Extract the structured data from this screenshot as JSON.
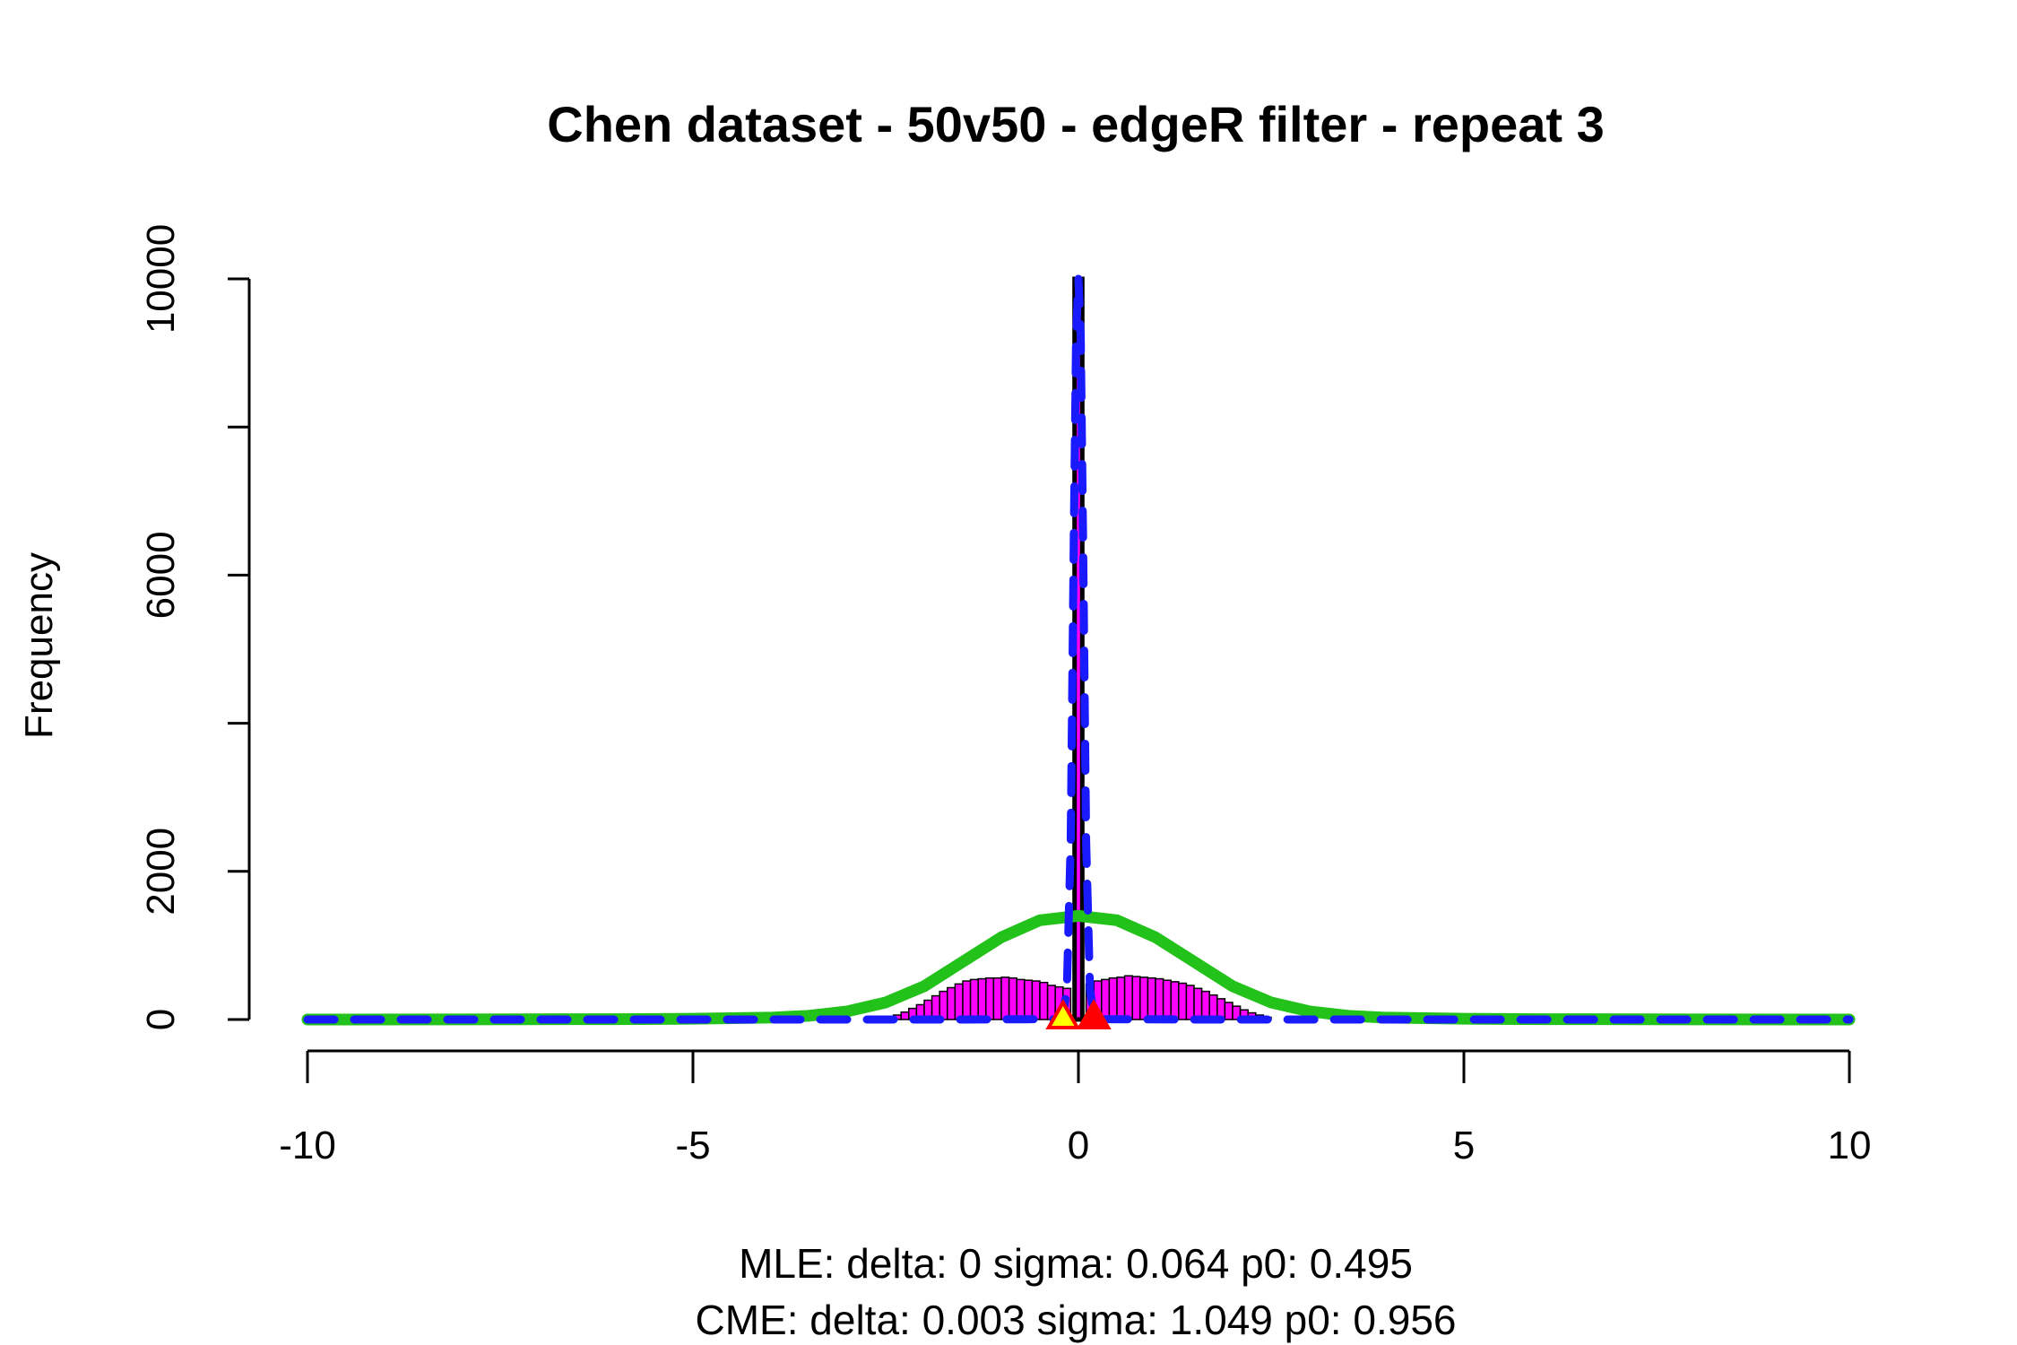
{
  "chart_data": {
    "type": "bar",
    "title": "Chen dataset - 50v50 - edgeR filter - repeat 3",
    "xlabel": "",
    "ylabel": "Frequency",
    "xlim": [
      -10,
      10
    ],
    "ylim": [
      0,
      10000
    ],
    "x_ticks": [
      -10,
      -5,
      0,
      5,
      10
    ],
    "y_ticks": [
      0,
      2000,
      6000,
      10000
    ],
    "y_minor_ticks": [
      4000,
      8000
    ],
    "subtitle_lines": [
      "MLE: delta: 0 sigma: 0.064 p0: 0.495",
      "CME: delta: 0.003 sigma: 1.049 p0: 0.956"
    ],
    "histogram": {
      "fill_color": "#ff00ff",
      "bin_width": 0.1,
      "bins_x_start": [
        -2.5,
        -2.4,
        -2.3,
        -2.2,
        -2.1,
        -2.0,
        -1.9,
        -1.8,
        -1.7,
        -1.6,
        -1.5,
        -1.4,
        -1.3,
        -1.2,
        -1.1,
        -1.0,
        -0.9,
        -0.8,
        -0.7,
        -0.6,
        -0.5,
        -0.4,
        -0.3,
        -0.2,
        -0.1,
        0.0,
        0.1,
        0.2,
        0.3,
        0.4,
        0.5,
        0.6,
        0.7,
        0.8,
        0.9,
        1.0,
        1.1,
        1.2,
        1.3,
        1.4,
        1.5,
        1.6,
        1.7,
        1.8,
        1.9,
        2.0,
        2.1,
        2.2,
        2.3,
        2.4
      ],
      "counts": [
        30,
        60,
        100,
        150,
        200,
        260,
        320,
        380,
        430,
        480,
        520,
        540,
        550,
        560,
        560,
        570,
        560,
        540,
        530,
        520,
        500,
        460,
        440,
        420,
        10000,
        10000,
        480,
        520,
        540,
        560,
        570,
        590,
        580,
        570,
        560,
        550,
        530,
        510,
        490,
        460,
        420,
        380,
        330,
        280,
        230,
        180,
        130,
        90,
        60,
        30
      ],
      "central_bar": {
        "x_start": -0.05,
        "x_end": 0.05,
        "count": 10000
      }
    },
    "series": [
      {
        "name": "",
        "color": "#22c21a",
        "style": "solid",
        "points": [
          [
            -10,
            0
          ],
          [
            -8,
            2
          ],
          [
            -6,
            5
          ],
          [
            -5,
            10
          ],
          [
            -4,
            25
          ],
          [
            -3.5,
            50
          ],
          [
            -3,
            110
          ],
          [
            -2.5,
            230
          ],
          [
            -2,
            450
          ],
          [
            -1.5,
            780
          ],
          [
            -1,
            1110
          ],
          [
            -0.5,
            1340
          ],
          [
            0,
            1400
          ],
          [
            0.5,
            1340
          ],
          [
            1,
            1110
          ],
          [
            1.5,
            780
          ],
          [
            2,
            450
          ],
          [
            2.5,
            230
          ],
          [
            3,
            110
          ],
          [
            3.5,
            50
          ],
          [
            4,
            25
          ],
          [
            5,
            10
          ],
          [
            6,
            5
          ],
          [
            8,
            2
          ],
          [
            10,
            0
          ]
        ]
      },
      {
        "name": "",
        "color": "#1a1aff",
        "style": "dashed",
        "points": [
          [
            -10,
            0
          ],
          [
            -1.5,
            0
          ],
          [
            -0.3,
            5
          ],
          [
            -0.2,
            60
          ],
          [
            -0.15,
            400
          ],
          [
            -0.1,
            2400
          ],
          [
            -0.06,
            6500
          ],
          [
            -0.03,
            9200
          ],
          [
            0,
            10000
          ],
          [
            0.03,
            9200
          ],
          [
            0.06,
            6500
          ],
          [
            0.1,
            2400
          ],
          [
            0.15,
            400
          ],
          [
            0.2,
            60
          ],
          [
            0.3,
            5
          ],
          [
            1.5,
            0
          ],
          [
            10,
            0
          ]
        ]
      }
    ],
    "markers": [
      {
        "type": "triangle",
        "x": -0.2,
        "y": 0,
        "fill": "#ffff00",
        "stroke": "#ff0000"
      },
      {
        "type": "triangle",
        "x": 0.2,
        "y": 0,
        "fill": "#ff0000",
        "stroke": "#ff0000"
      }
    ],
    "grid": false
  }
}
